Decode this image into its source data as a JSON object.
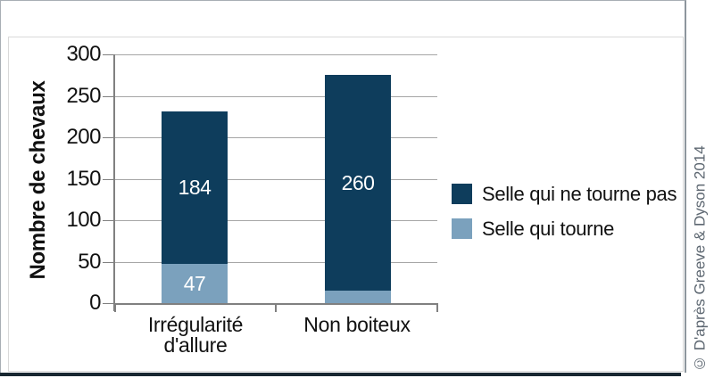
{
  "figure": {
    "credit": "© D'après Greeve & Dyson 2014"
  },
  "chart_data": {
    "type": "bar",
    "stacked": true,
    "title": "",
    "xlabel": "",
    "ylabel": "Nombre de chevaux",
    "ylim": [
      0,
      300
    ],
    "ytick_step": 50,
    "yticks": [
      300,
      250,
      200,
      150,
      100,
      50,
      0
    ],
    "grid": true,
    "legend_position": "right",
    "categories": [
      "Irrégularité d'allure",
      "Non boiteux"
    ],
    "series": [
      {
        "name": "Selle qui tourne",
        "color": "#7ba1bd",
        "values": [
          47,
          15
        ]
      },
      {
        "name": "Selle qui ne tourne pas",
        "color": "#0e3d5c",
        "values": [
          184,
          260
        ]
      }
    ],
    "bar_value_label_color": "#ffffff"
  },
  "colors": {
    "dark_series": "#0e3d5c",
    "light_series": "#7ba1bd",
    "gridline": "#a6a6a6",
    "axis": "#808080",
    "text": "#111111",
    "credit_text": "#5d6771",
    "bottom_band": "#182731",
    "outer_border": "#8d969d",
    "inner_border": "#d9d9d9"
  }
}
